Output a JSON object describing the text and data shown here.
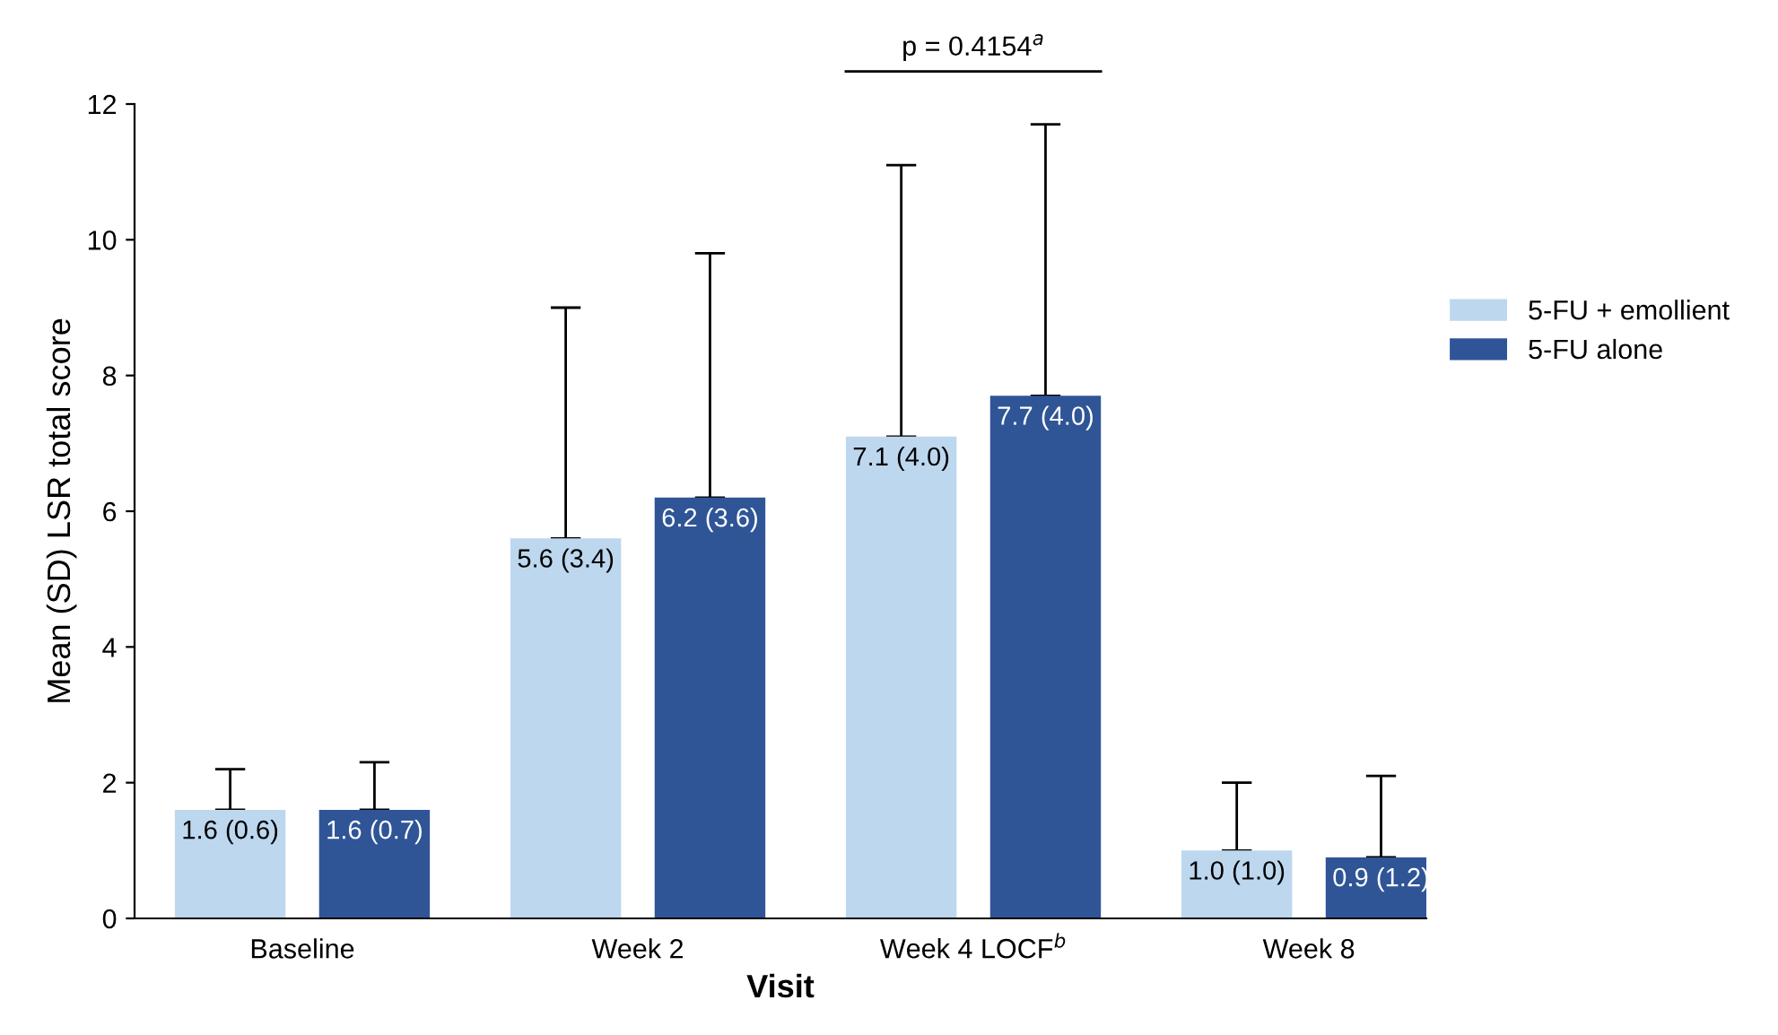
{
  "chart_data": {
    "type": "bar",
    "xlabel": "Visit",
    "ylabel": "Mean (SD) LSR total score",
    "categories": [
      "Baseline",
      "Week 2",
      "Week 4 LOCF$^{b}$",
      "Week 8"
    ],
    "series": [
      {
        "name": "5-FU + emollient",
        "color": "#bdd7ee",
        "values": [
          1.6,
          5.6,
          7.1,
          1.0
        ],
        "errors": [
          [
            1.6,
            2.2
          ],
          [
            5.6,
            9.0
          ],
          [
            7.1,
            11.1
          ],
          [
            1.0,
            2.0
          ]
        ],
        "value_labels": [
          "1.6 (0.6)",
          "5.6 (3.4)",
          "7.1 (4.0)",
          "1.0 (1.0)"
        ]
      },
      {
        "name": "5-FU alone",
        "color": "#2f5597",
        "values": [
          1.6,
          6.2,
          7.7,
          0.9
        ],
        "errors": [
          [
            1.6,
            2.3
          ],
          [
            6.2,
            9.8
          ],
          [
            7.7,
            11.7
          ],
          [
            0.9,
            2.1
          ]
        ],
        "value_labels": [
          "1.6 (0.7)",
          "6.2 (3.6)",
          "7.7 (4.0)",
          "0.9 (1.2)"
        ]
      }
    ],
    "ylim": [
      0,
      12
    ],
    "yticks": [
      0,
      2,
      4,
      6,
      8,
      10,
      12
    ],
    "annotations": [
      "p = 0.4154$^{a}$"
    ],
    "grid": false,
    "legend": "right"
  }
}
